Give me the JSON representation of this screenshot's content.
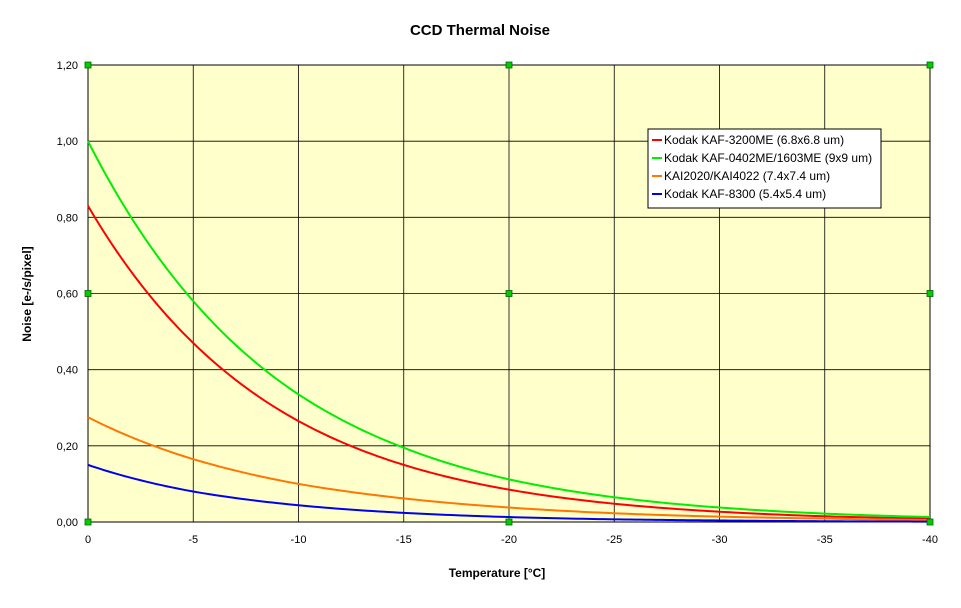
{
  "chart_data": {
    "type": "line",
    "title": "CCD Thermal Noise",
    "xlabel": "Temperature [°C]",
    "ylabel": "Noise [e-/s/pixel]",
    "x_ticks": [
      "0",
      "-5",
      "-10",
      "-15",
      "-20",
      "-25",
      "-30",
      "-35",
      "-40"
    ],
    "y_ticks": [
      "0,00",
      "0,20",
      "0,40",
      "0,60",
      "0,80",
      "1,00",
      "1,20"
    ],
    "xlim": [
      0,
      -40
    ],
    "ylim": [
      0,
      1.2
    ],
    "grid": true,
    "legend_position": "top-right",
    "colors": {
      "plot_bg": "#ffffcc",
      "grid": "#000000",
      "marker": "#00cc00"
    },
    "x": [
      0,
      -5,
      -10,
      -15,
      -20,
      -25,
      -30,
      -35,
      -40
    ],
    "series": [
      {
        "name": "Kodak KAF-3200ME (6.8x6.8 um)",
        "color": "#ff0000",
        "values": [
          0.83,
          0.47,
          0.265,
          0.15,
          0.085,
          0.048,
          0.027,
          0.015,
          0.009
        ]
      },
      {
        "name": "Kodak KAF-0402ME/1603ME (9x9 um)",
        "color": "#00ee00",
        "values": [
          1.0,
          0.58,
          0.335,
          0.195,
          0.112,
          0.065,
          0.038,
          0.022,
          0.013
        ]
      },
      {
        "name": "KAI2020/KAI4022 (7.4x7.4 um)",
        "color": "#ff7700",
        "values": [
          0.275,
          0.165,
          0.1,
          0.062,
          0.038,
          0.023,
          0.014,
          0.009,
          0.005
        ]
      },
      {
        "name": "Kodak KAF-8300 (5.4x5.4 um)",
        "color": "#0000ee",
        "values": [
          0.15,
          0.08,
          0.044,
          0.024,
          0.013,
          0.007,
          0.004,
          0.002,
          0.001
        ]
      }
    ]
  }
}
